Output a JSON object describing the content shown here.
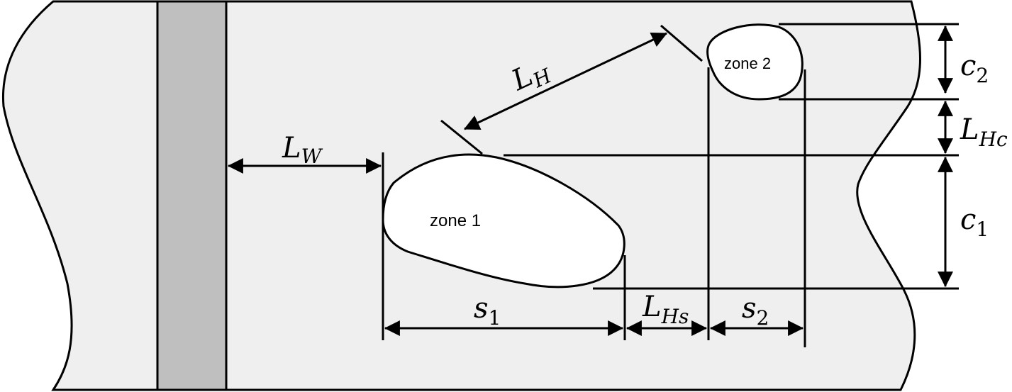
{
  "colors": {
    "plate_fill": "#efefef",
    "weld_fill": "#bfbfbf",
    "zone_fill": "#ffffff",
    "line": "#000000"
  },
  "zones": {
    "zone1": "zone 1",
    "zone2": "zone 2"
  },
  "labels": {
    "lw": {
      "main": "L",
      "sub": "W"
    },
    "lh": {
      "main": "L",
      "sub": "H"
    },
    "lhc": {
      "main": "L",
      "sub": "Hc"
    },
    "lhs": {
      "main": "L",
      "sub": "Hs"
    },
    "c1": {
      "main": "c",
      "sub": "1"
    },
    "c2": {
      "main": "c",
      "sub": "2"
    },
    "s1": {
      "main": "s",
      "sub": "1"
    },
    "s2": {
      "main": "s",
      "sub": "2"
    }
  }
}
